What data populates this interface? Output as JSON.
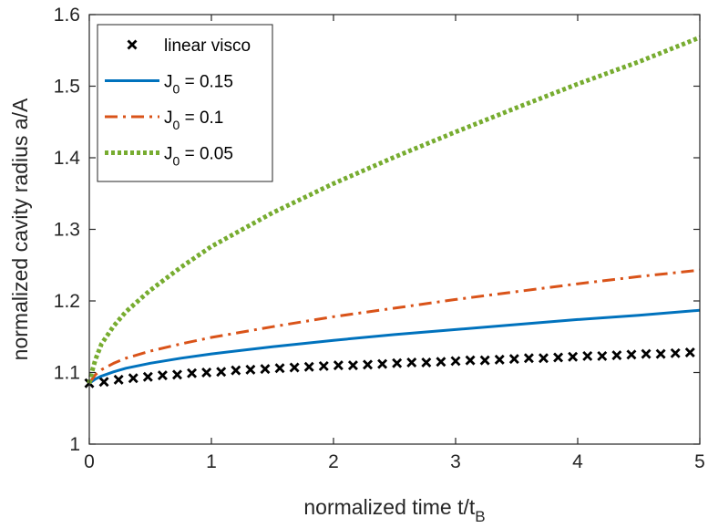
{
  "chart_data": {
    "type": "line",
    "xlabel": "normalized time t/t",
    "xlabel_subscript": "B",
    "ylabel": "normalized cavity radius a/A",
    "xlim": [
      0,
      5
    ],
    "ylim": [
      1,
      1.6
    ],
    "xticks": [
      "0",
      "1",
      "2",
      "3",
      "4",
      "5"
    ],
    "yticks": [
      "1",
      "1.1",
      "1.2",
      "1.3",
      "1.4",
      "1.5",
      "1.6"
    ],
    "grid": false,
    "legend_position": "top-left",
    "series": [
      {
        "name": "linear visco",
        "style": "markers",
        "marker": "x",
        "color": "#000000",
        "x": [
          0.0,
          0.12,
          0.24,
          0.36,
          0.48,
          0.6,
          0.72,
          0.84,
          0.96,
          1.08,
          1.2,
          1.32,
          1.44,
          1.56,
          1.68,
          1.8,
          1.92,
          2.04,
          2.16,
          2.28,
          2.4,
          2.52,
          2.64,
          2.76,
          2.88,
          3.0,
          3.12,
          3.24,
          3.36,
          3.48,
          3.6,
          3.72,
          3.84,
          3.96,
          4.08,
          4.2,
          4.32,
          4.44,
          4.56,
          4.68,
          4.8,
          4.92
        ],
        "y": [
          1.085,
          1.087,
          1.09,
          1.092,
          1.094,
          1.096,
          1.097,
          1.099,
          1.1,
          1.101,
          1.103,
          1.104,
          1.105,
          1.106,
          1.107,
          1.108,
          1.109,
          1.11,
          1.11,
          1.111,
          1.112,
          1.113,
          1.114,
          1.114,
          1.115,
          1.116,
          1.117,
          1.117,
          1.118,
          1.119,
          1.12,
          1.12,
          1.121,
          1.122,
          1.123,
          1.123,
          1.124,
          1.125,
          1.126,
          1.126,
          1.127,
          1.128
        ]
      },
      {
        "name": "J_0 = 0.15",
        "label_main": "J",
        "label_sub": "0",
        "label_rest": " = 0.15",
        "style": "solid",
        "color": "#0072bd",
        "x": [
          0,
          0.05,
          0.1,
          0.2,
          0.3,
          0.5,
          0.75,
          1.0,
          1.5,
          2.0,
          2.5,
          3.0,
          3.5,
          4.0,
          4.5,
          5.0
        ],
        "y": [
          1.085,
          1.091,
          1.095,
          1.101,
          1.106,
          1.113,
          1.12,
          1.126,
          1.136,
          1.145,
          1.153,
          1.16,
          1.167,
          1.174,
          1.18,
          1.187
        ]
      },
      {
        "name": "J_0 = 0.1",
        "label_main": "J",
        "label_sub": "0",
        "label_rest": " = 0.1",
        "style": "dashdot",
        "color": "#d95319",
        "x": [
          0,
          0.05,
          0.1,
          0.2,
          0.3,
          0.5,
          0.75,
          1.0,
          1.5,
          2.0,
          2.5,
          3.0,
          3.5,
          4.0,
          4.5,
          5.0
        ],
        "y": [
          1.085,
          1.097,
          1.104,
          1.113,
          1.12,
          1.13,
          1.14,
          1.149,
          1.164,
          1.178,
          1.19,
          1.202,
          1.213,
          1.224,
          1.234,
          1.243
        ]
      },
      {
        "name": "J_0 = 0.05",
        "label_main": "J",
        "label_sub": "0",
        "label_rest": " = 0.05",
        "style": "dotted",
        "color": "#77ac30",
        "x": [
          0,
          0.02,
          0.05,
          0.1,
          0.2,
          0.3,
          0.5,
          0.75,
          1.0,
          1.5,
          2.0,
          2.5,
          3.0,
          3.5,
          4.0,
          4.5,
          5.0
        ],
        "y": [
          1.085,
          1.1,
          1.118,
          1.14,
          1.165,
          1.185,
          1.215,
          1.247,
          1.276,
          1.323,
          1.364,
          1.401,
          1.436,
          1.47,
          1.503,
          1.534,
          1.568
        ]
      }
    ]
  }
}
